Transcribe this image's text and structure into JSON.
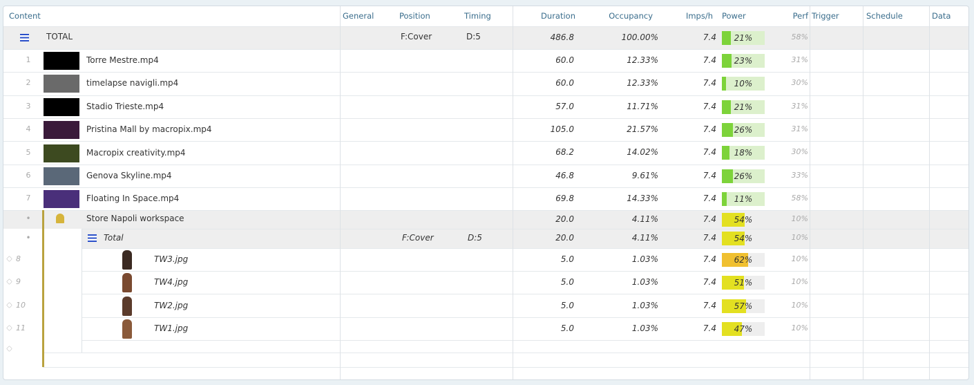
{
  "header": {
    "columns": [
      "Content",
      "General",
      "Position",
      "Timing",
      "Duration",
      "Occupancy",
      "Imps/h",
      "Power",
      "Perf",
      "Trigger",
      "Schedule",
      "Data"
    ]
  },
  "total": {
    "label": "TOTAL",
    "position": "F:Cover",
    "timing": "D:5",
    "duration": "486.8",
    "occupancy": "100.00%",
    "imps": "7.4",
    "power": "21%",
    "power_color": "#7dd33a",
    "perf": "58%"
  },
  "items": [
    {
      "index": "1",
      "name": "Torre Mestre.mp4",
      "duration": "60.0",
      "occupancy": "12.33%",
      "imps": "7.4",
      "power": "23%",
      "power_color": "#7dd33a",
      "perf": "31%"
    },
    {
      "index": "2",
      "name": "timelapse navigli.mp4",
      "duration": "60.0",
      "occupancy": "12.33%",
      "imps": "7.4",
      "power": "10%",
      "power_color": "#7dd33a",
      "perf": "30%"
    },
    {
      "index": "3",
      "name": "Stadio Trieste.mp4",
      "duration": "57.0",
      "occupancy": "11.71%",
      "imps": "7.4",
      "power": "21%",
      "power_color": "#7dd33a",
      "perf": "31%"
    },
    {
      "index": "4",
      "name": "Pristina Mall by macropix.mp4",
      "duration": "105.0",
      "occupancy": "21.57%",
      "imps": "7.4",
      "power": "26%",
      "power_color": "#7dd33a",
      "perf": "31%"
    },
    {
      "index": "5",
      "name": "Macropix creativity.mp4",
      "duration": "68.2",
      "occupancy": "14.02%",
      "imps": "7.4",
      "power": "18%",
      "power_color": "#7dd33a",
      "perf": "30%"
    },
    {
      "index": "6",
      "name": "Genova Skyline.mp4",
      "duration": "46.8",
      "occupancy": "9.61%",
      "imps": "7.4",
      "power": "26%",
      "power_color": "#7dd33a",
      "perf": "33%"
    },
    {
      "index": "7",
      "name": "Floating In Space.mp4",
      "duration": "69.8",
      "occupancy": "14.33%",
      "imps": "7.4",
      "power": "11%",
      "power_color": "#7dd33a",
      "perf": "58%"
    }
  ],
  "workspace": {
    "index": "•",
    "name": "Store Napoli workspace",
    "duration": "20.0",
    "occupancy": "4.11%",
    "imps": "7.4",
    "power": "54%",
    "power_color": "#e3e021",
    "perf": "10%",
    "total": {
      "index": "•",
      "label": "Total",
      "position": "F:Cover",
      "timing": "D:5",
      "duration": "20.0",
      "occupancy": "4.11%",
      "imps": "7.4",
      "power": "54%",
      "power_color": "#e3e021",
      "perf": "10%"
    },
    "items": [
      {
        "index": "8",
        "name": "TW3.jpg",
        "duration": "5.0",
        "occupancy": "1.03%",
        "imps": "7.4",
        "power": "62%",
        "power_color": "#f0c030",
        "perf": "10%"
      },
      {
        "index": "9",
        "name": "TW4.jpg",
        "duration": "5.0",
        "occupancy": "1.03%",
        "imps": "7.4",
        "power": "51%",
        "power_color": "#e3e021",
        "perf": "10%"
      },
      {
        "index": "10",
        "name": "TW2.jpg",
        "duration": "5.0",
        "occupancy": "1.03%",
        "imps": "7.4",
        "power": "57%",
        "power_color": "#e3e021",
        "perf": "10%"
      },
      {
        "index": "11",
        "name": "TW1.jpg",
        "duration": "5.0",
        "occupancy": "1.03%",
        "imps": "7.4",
        "power": "47%",
        "power_color": "#e3e021",
        "perf": "10%"
      }
    ]
  }
}
